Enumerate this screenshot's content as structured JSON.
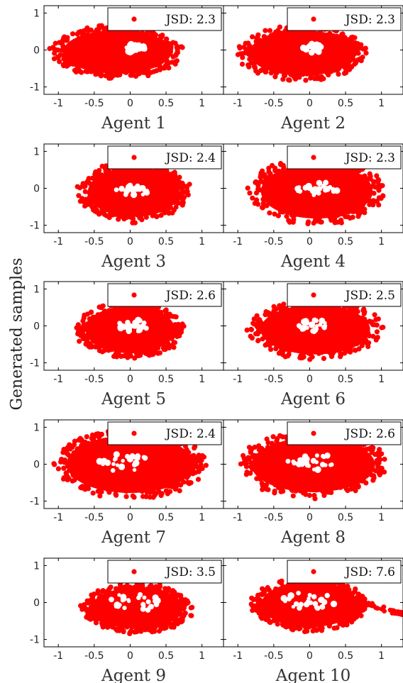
{
  "figure": {
    "ylabel": "Generated samples",
    "marker_color": "#ff0000"
  },
  "chart_data": [
    {
      "type": "scatter",
      "title": "Agent 1",
      "legend": "JSD: 2.3",
      "legend_position": "top-right",
      "x_ticks": [
        "-1",
        "-0.5",
        "0",
        "0.5",
        "1"
      ],
      "y_ticks": [
        "1",
        "0",
        "-1"
      ],
      "xlim": [
        -1.2,
        1.3
      ],
      "ylim": [
        -1.2,
        1.2
      ],
      "series": [
        {
          "shape": "filled-ellipse",
          "cx": -0.18,
          "cy": -0.05,
          "rx": 0.92,
          "ry": 0.72,
          "hole_cx": 0.05,
          "hole_cy": 0.05,
          "hole_rx": 0.2,
          "hole_ry": 0.15,
          "tail": false
        }
      ]
    },
    {
      "type": "scatter",
      "title": "Agent 2",
      "legend": "JSD: 2.3",
      "legend_position": "top-right",
      "x_ticks": [
        "-1",
        "-0.5",
        "0",
        "0.5",
        "1"
      ],
      "y_ticks": [
        "1",
        "0",
        "-1"
      ],
      "xlim": [
        -1.2,
        1.3
      ],
      "ylim": [
        -1.2,
        1.2
      ],
      "series": [
        {
          "shape": "filled-ellipse",
          "cx": -0.1,
          "cy": -0.08,
          "rx": 0.9,
          "ry": 0.75,
          "hole_cx": 0.05,
          "hole_cy": 0.05,
          "hole_rx": 0.2,
          "hole_ry": 0.15,
          "tail": false
        }
      ]
    },
    {
      "type": "scatter",
      "title": "Agent 3",
      "legend": "JSD: 2.4",
      "legend_position": "top-right",
      "x_ticks": [
        "-1",
        "-0.5",
        "0",
        "0.5",
        "1"
      ],
      "y_ticks": [
        "1",
        "0",
        "-1"
      ],
      "xlim": [
        -1.2,
        1.3
      ],
      "ylim": [
        -1.2,
        1.2
      ],
      "series": [
        {
          "shape": "filled-ellipse",
          "cx": 0.05,
          "cy": -0.1,
          "rx": 0.78,
          "ry": 0.82,
          "hole_cx": 0.05,
          "hole_cy": -0.05,
          "hole_rx": 0.3,
          "hole_ry": 0.2,
          "tail": false
        }
      ]
    },
    {
      "type": "scatter",
      "title": "Agent 4",
      "legend": "JSD: 2.3",
      "legend_position": "top-right",
      "x_ticks": [
        "-1",
        "-0.5",
        "0",
        "0.5",
        "1"
      ],
      "y_ticks": [
        "1",
        "0",
        "-1"
      ],
      "xlim": [
        -1.2,
        1.3
      ],
      "ylim": [
        -1.2,
        1.2
      ],
      "series": [
        {
          "shape": "filled-ellipse",
          "cx": 0.1,
          "cy": -0.08,
          "rx": 0.95,
          "ry": 0.9,
          "hole_cx": 0.1,
          "hole_cy": 0.0,
          "hole_rx": 0.35,
          "hole_ry": 0.22,
          "tail": false
        }
      ]
    },
    {
      "type": "scatter",
      "title": "Agent 5",
      "legend": "JSD: 2.6",
      "legend_position": "top-right",
      "x_ticks": [
        "-1",
        "-0.5",
        "0",
        "0.5",
        "1"
      ],
      "y_ticks": [
        "1",
        "0",
        "-1"
      ],
      "xlim": [
        -1.2,
        1.3
      ],
      "ylim": [
        -1.2,
        1.2
      ],
      "series": [
        {
          "shape": "filled-ellipse",
          "cx": 0.0,
          "cy": -0.1,
          "rx": 0.76,
          "ry": 0.78,
          "hole_cx": 0.05,
          "hole_cy": 0.0,
          "hole_rx": 0.28,
          "hole_ry": 0.2,
          "tail": false
        }
      ]
    },
    {
      "type": "scatter",
      "title": "Agent 6",
      "legend": "JSD: 2.5",
      "legend_position": "top-right",
      "x_ticks": [
        "-1",
        "-0.5",
        "0",
        "0.5",
        "1"
      ],
      "y_ticks": [
        "1",
        "0",
        "-1"
      ],
      "xlim": [
        -1.2,
        1.3
      ],
      "ylim": [
        -1.2,
        1.2
      ],
      "series": [
        {
          "shape": "filled-ellipse",
          "cx": 0.08,
          "cy": -0.1,
          "rx": 0.93,
          "ry": 0.82,
          "hole_cx": 0.1,
          "hole_cy": 0.0,
          "hole_rx": 0.3,
          "hole_ry": 0.2,
          "tail": false
        }
      ]
    },
    {
      "type": "scatter",
      "title": "Agent 7",
      "legend": "JSD: 2.4",
      "legend_position": "top-right",
      "x_ticks": [
        "-1",
        "-0.5",
        "0",
        "0.5",
        "1"
      ],
      "y_ticks": [
        "1",
        "0",
        "-1"
      ],
      "xlim": [
        -1.2,
        1.3
      ],
      "ylim": [
        -1.2,
        1.2
      ],
      "series": [
        {
          "shape": "filled-ellipse",
          "cx": 0.0,
          "cy": 0.0,
          "rx": 1.08,
          "ry": 0.95,
          "hole_cx": -0.05,
          "hole_cy": 0.05,
          "hole_rx": 0.45,
          "hole_ry": 0.32,
          "tail": false
        }
      ]
    },
    {
      "type": "scatter",
      "title": "Agent 8",
      "legend": "JSD: 2.6",
      "legend_position": "top-right",
      "x_ticks": [
        "-1",
        "-0.5",
        "0",
        "0.5",
        "1"
      ],
      "y_ticks": [
        "1",
        "0",
        "-1"
      ],
      "xlim": [
        -1.2,
        1.3
      ],
      "ylim": [
        -1.2,
        1.2
      ],
      "series": [
        {
          "shape": "filled-ellipse",
          "cx": 0.05,
          "cy": -0.02,
          "rx": 1.05,
          "ry": 0.9,
          "hole_cx": 0.05,
          "hole_cy": 0.05,
          "hole_rx": 0.42,
          "hole_ry": 0.3,
          "tail": false
        }
      ]
    },
    {
      "type": "scatter",
      "title": "Agent 9",
      "legend": "JSD: 3.5",
      "legend_position": "top-right",
      "x_ticks": [
        "-1",
        "-0.5",
        "0",
        "0.5",
        "1"
      ],
      "y_ticks": [
        "1",
        "0",
        "-1"
      ],
      "xlim": [
        -1.2,
        1.3
      ],
      "ylim": [
        -1.2,
        1.2
      ],
      "series": [
        {
          "shape": "filled-ellipse",
          "cx": 0.1,
          "cy": -0.15,
          "rx": 0.78,
          "ry": 0.68,
          "hole_cx": 0.05,
          "hole_cy": 0.0,
          "hole_rx": 0.42,
          "hole_ry": 0.3,
          "tail": false
        }
      ]
    },
    {
      "type": "scatter",
      "title": "Agent 10",
      "legend": "JSD: 7.6",
      "legend_position": "top-right",
      "x_ticks": [
        "-1",
        "-0.5",
        "0",
        "0.5",
        "1"
      ],
      "y_ticks": [
        "1",
        "0",
        "-1"
      ],
      "xlim": [
        -1.2,
        1.3
      ],
      "ylim": [
        -1.2,
        1.2
      ],
      "series": [
        {
          "shape": "filled-ellipse",
          "cx": 0.0,
          "cy": -0.05,
          "rx": 0.82,
          "ry": 0.75,
          "hole_cx": 0.0,
          "hole_cy": 0.05,
          "hole_rx": 0.45,
          "hole_ry": 0.28,
          "tail": true
        }
      ]
    }
  ]
}
